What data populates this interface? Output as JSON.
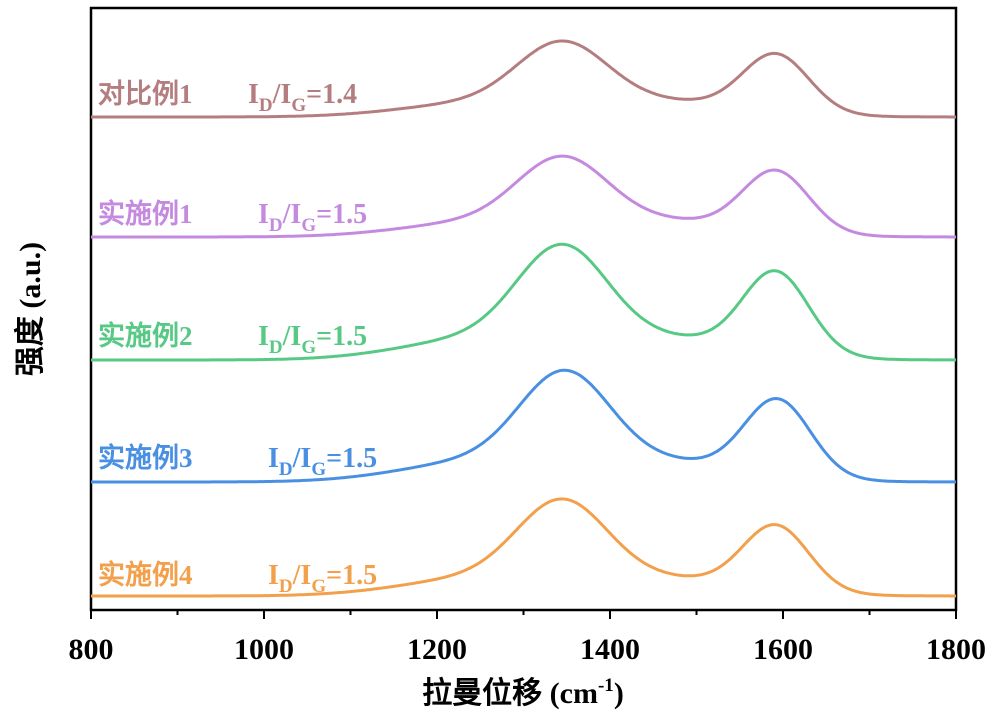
{
  "chart_data": {
    "type": "line",
    "title": "",
    "xlabel": "拉曼位移 (cm",
    "xlabel_sup": "-1",
    "xlabel_end": ")",
    "ylabel": "强度 (a.u.)",
    "xlim": [
      800,
      1800
    ],
    "xticks": [
      "800",
      "1000",
      "1200",
      "1400",
      "1600",
      "1800"
    ],
    "grid": false,
    "legend": "none",
    "series": [
      {
        "name": "对比例1",
        "ratio": {
          "main1": "I",
          "sub1": "D",
          "slash": "/I",
          "sub2": "G",
          "value": "=1.4"
        },
        "color": "#b47e80",
        "baseline": 0,
        "d_peak": 62,
        "g_peak": 57,
        "d_center": 1345,
        "g_center": 1592
      },
      {
        "name": "实施例1",
        "ratio": {
          "main1": "I",
          "sub1": "D",
          "slash": "/I",
          "sub2": "G",
          "value": "=1.5"
        },
        "color": "#c48ae0",
        "baseline": 0,
        "d_peak": 66,
        "g_peak": 60,
        "d_center": 1345,
        "g_center": 1592
      },
      {
        "name": "实施例2",
        "ratio": {
          "main1": "I",
          "sub1": "D",
          "slash": "/I",
          "sub2": "G",
          "value": "=1.5"
        },
        "color": "#57c985",
        "baseline": 0,
        "d_peak": 95,
        "g_peak": 80,
        "d_center": 1345,
        "g_center": 1592
      },
      {
        "name": "实施例3",
        "ratio": {
          "main1": "I",
          "sub1": "D",
          "slash": "/I",
          "sub2": "G",
          "value": "=1.5"
        },
        "color": "#4a90e2",
        "baseline": 0,
        "d_peak": 92,
        "g_peak": 75,
        "d_center": 1348,
        "g_center": 1594
      },
      {
        "name": "实施例4",
        "ratio": {
          "main1": "I",
          "sub1": "D",
          "slash": "/I",
          "sub2": "G",
          "value": "=1.5"
        },
        "color": "#f2a04c",
        "baseline": 0,
        "d_peak": 80,
        "g_peak": 64,
        "d_center": 1345,
        "g_center": 1592
      }
    ]
  }
}
